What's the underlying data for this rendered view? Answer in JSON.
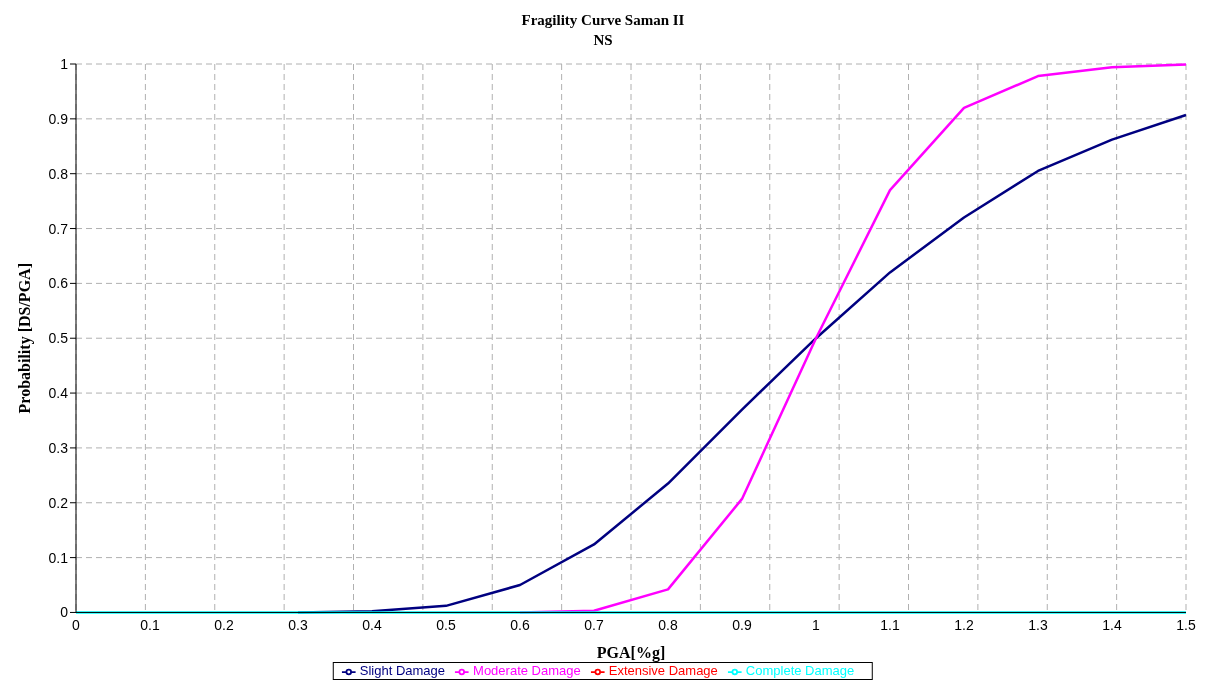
{
  "chart_data": {
    "type": "line",
    "title": "Fragility Curve Saman II",
    "subtitle": "NS",
    "xlabel": "PGA[%g]",
    "ylabel": "Probability [DS/PGA]",
    "categories": [
      "0",
      "0.1",
      "0.2",
      "0.3",
      "0.4",
      "0.5",
      "0.6",
      "0.7",
      "0.8",
      "0.9",
      "1",
      "1.1",
      "1.2",
      "1.3",
      "1.4",
      "1.5"
    ],
    "series": [
      {
        "name": "Slight Damage",
        "color": "#000080",
        "values": [
          null,
          null,
          null,
          0,
          0.002,
          0.012,
          0.05,
          0.124,
          0.235,
          0.37,
          0.5,
          0.62,
          0.72,
          0.805,
          0.862,
          0.907
        ]
      },
      {
        "name": "Moderate Damage",
        "color": "#ff00ff",
        "values": [
          null,
          null,
          null,
          null,
          null,
          null,
          0,
          0.003,
          0.042,
          0.207,
          0.5,
          0.77,
          0.92,
          0.978,
          0.994,
          0.999
        ]
      },
      {
        "name": "Extensive Damage",
        "color": "#ff0000",
        "values": [
          null,
          null,
          null,
          null,
          null,
          null,
          null,
          null,
          null,
          null,
          null,
          null,
          null,
          null,
          null,
          null
        ]
      },
      {
        "name": "Complete Damage",
        "color": "#00ffff",
        "values": [
          0,
          0,
          0,
          0,
          0,
          0,
          0,
          0,
          0,
          0,
          0,
          0,
          0,
          0,
          0,
          0
        ]
      }
    ],
    "ylim": [
      0,
      1
    ],
    "yticks": [
      0,
      0.1,
      0.2,
      0.3,
      0.4,
      0.5,
      0.6,
      0.7,
      0.8,
      0.9,
      1
    ],
    "grid": true,
    "legend": "bottom",
    "marker": "none",
    "line_style": "solid"
  }
}
